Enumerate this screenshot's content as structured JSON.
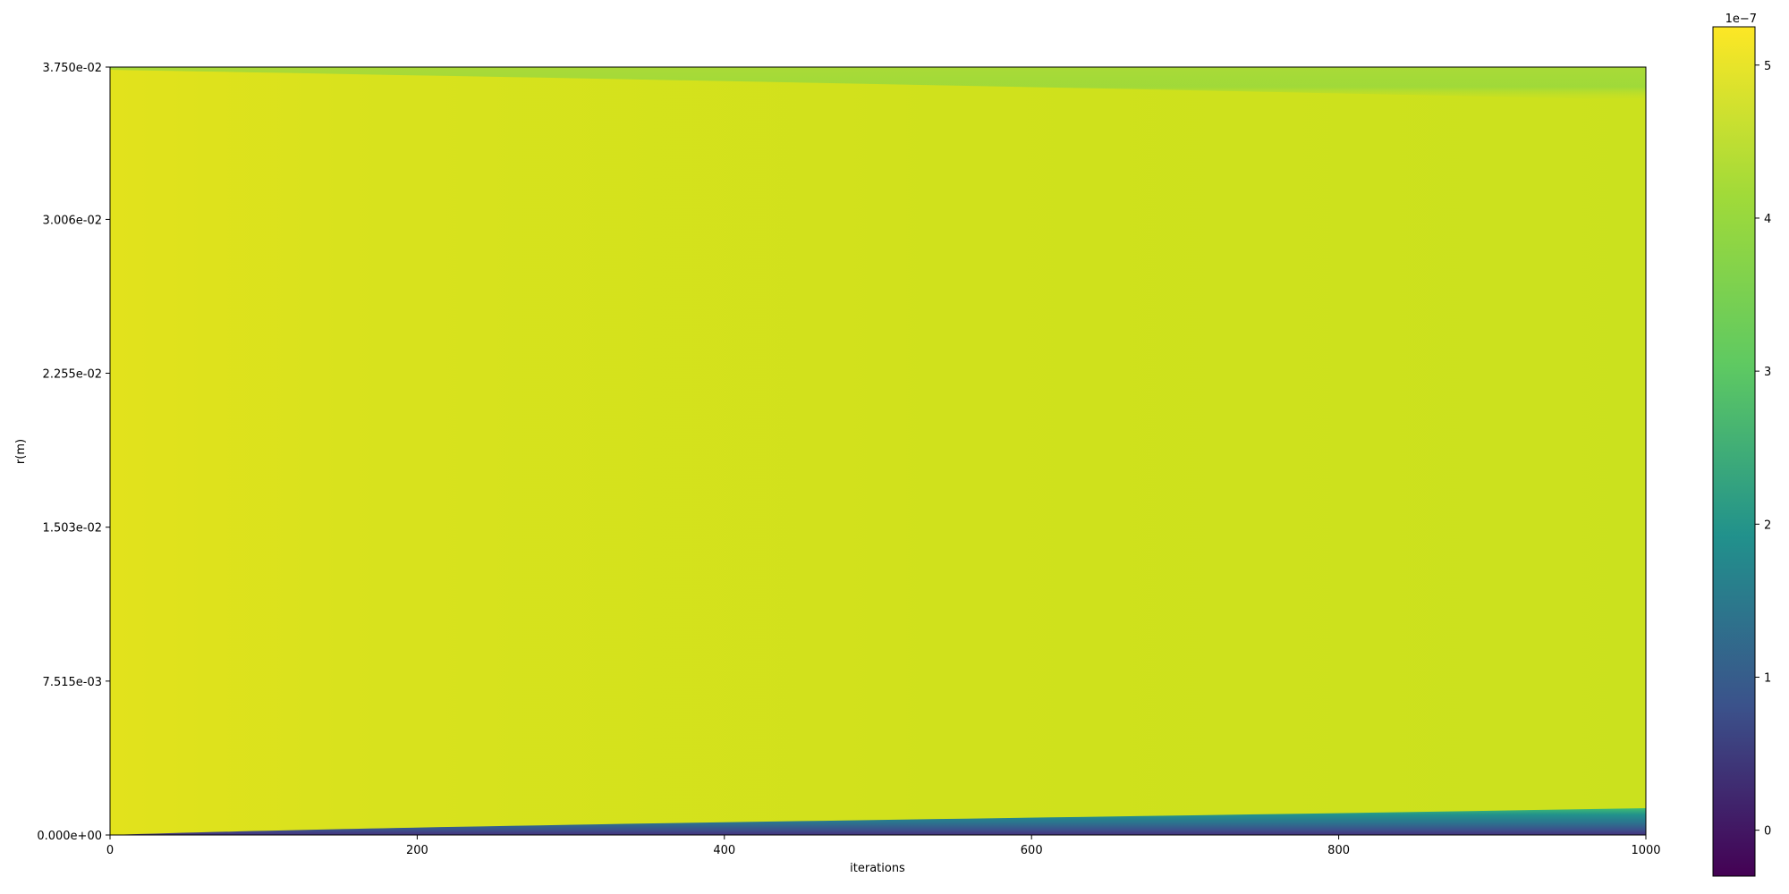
{
  "chart_data": {
    "type": "heatmap",
    "title": "",
    "xlabel": "iterations",
    "ylabel": "r(m)",
    "xlim": [
      0,
      1000
    ],
    "ylim": [
      0.0,
      0.0375
    ],
    "x_ticks": [
      {
        "value": 0,
        "label": "0"
      },
      {
        "value": 200,
        "label": "200"
      },
      {
        "value": 400,
        "label": "400"
      },
      {
        "value": 600,
        "label": "600"
      },
      {
        "value": 800,
        "label": "800"
      },
      {
        "value": 1000,
        "label": "1000"
      }
    ],
    "y_ticks": [
      {
        "value": 0.0,
        "label": "0.000e+00"
      },
      {
        "value": 0.007515,
        "label": "7.515e-03"
      },
      {
        "value": 0.01503,
        "label": "1.503e-02"
      },
      {
        "value": 0.02255,
        "label": "2.255e-02"
      },
      {
        "value": 0.03006,
        "label": "3.006e-02"
      },
      {
        "value": 0.0375,
        "label": "3.750e-02"
      }
    ],
    "colormap": "viridis",
    "colorbar": {
      "range": [
        -3e-08,
        5.25e-07
      ],
      "ticks": [
        {
          "value": 0,
          "label": "0"
        },
        {
          "value": 1e-07,
          "label": "1"
        },
        {
          "value": 2e-07,
          "label": "2"
        },
        {
          "value": 3e-07,
          "label": "3"
        },
        {
          "value": 4e-07,
          "label": "4"
        },
        {
          "value": 5e-07,
          "label": "5"
        }
      ],
      "offset_label": "1e−7",
      "stops": [
        "#440154",
        "#3b528b",
        "#21918c",
        "#5ec962",
        "#a0da39",
        "#fde725"
      ]
    },
    "field": {
      "bulk_value_start": 5.05e-07,
      "bulk_value_end": 4.8e-07,
      "top_boundary_value": 4.3e-07,
      "bottom_boundary_value": 0.0
    }
  }
}
